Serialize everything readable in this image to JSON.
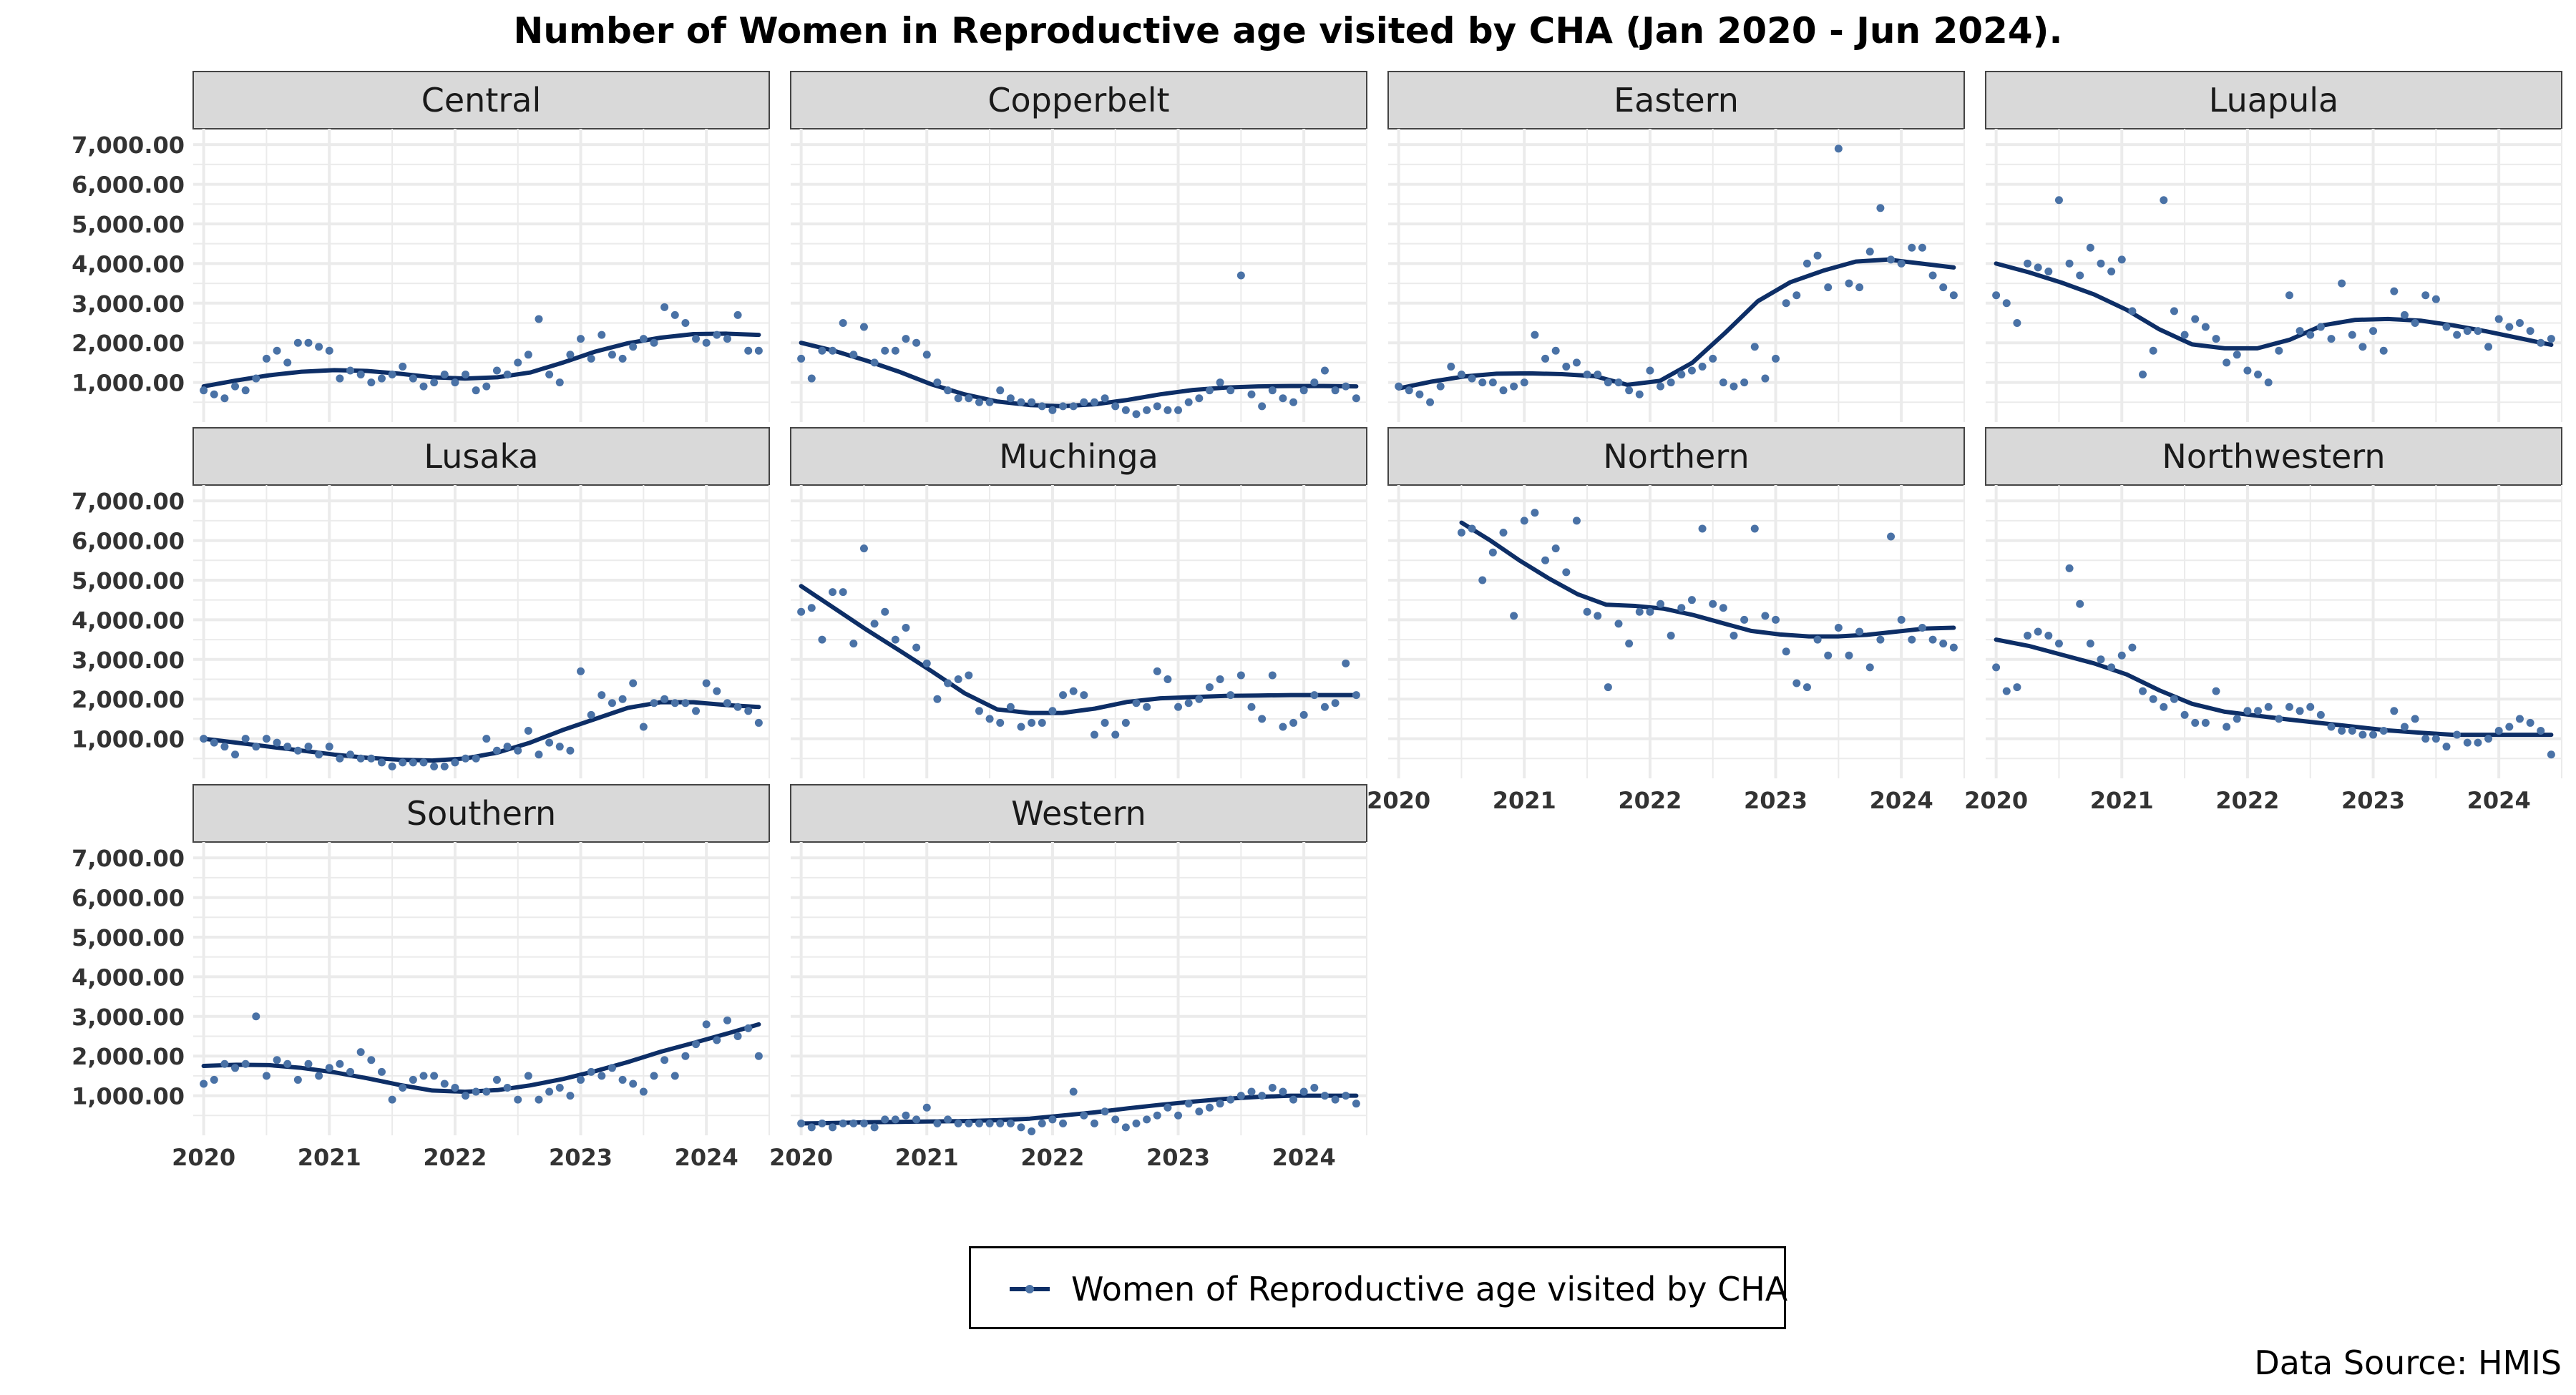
{
  "title": "Number of Women in Reproductive age visited by CHA (Jan 2020 - Jun 2024).",
  "legend": {
    "label": "Women of Reproductive age visited by CHA"
  },
  "source": "Data Source: HMIS",
  "colors": {
    "line": "#0d2e66",
    "point": "#4a72a6",
    "strip_fill": "#d9d9d9",
    "grid": "#ebebeb"
  },
  "chart_data": {
    "type": "scatter",
    "x_ticks": [
      "2020",
      "2021",
      "2022",
      "2023",
      "2024"
    ],
    "y_ticks": [
      "1,000.00",
      "2,000.00",
      "3,000.00",
      "4,000.00",
      "5,000.00",
      "6,000.00",
      "7,000.00"
    ],
    "ylim": [
      0,
      7400
    ],
    "xlim": [
      "2019-12",
      "2024-07"
    ],
    "grid": true,
    "legend_position": "bottom",
    "months": [
      "2020-01",
      "2020-02",
      "2020-03",
      "2020-04",
      "2020-05",
      "2020-06",
      "2020-07",
      "2020-08",
      "2020-09",
      "2020-10",
      "2020-11",
      "2020-12",
      "2021-01",
      "2021-02",
      "2021-03",
      "2021-04",
      "2021-05",
      "2021-06",
      "2021-07",
      "2021-08",
      "2021-09",
      "2021-10",
      "2021-11",
      "2021-12",
      "2022-01",
      "2022-02",
      "2022-03",
      "2022-04",
      "2022-05",
      "2022-06",
      "2022-07",
      "2022-08",
      "2022-09",
      "2022-10",
      "2022-11",
      "2022-12",
      "2023-01",
      "2023-02",
      "2023-03",
      "2023-04",
      "2023-05",
      "2023-06",
      "2023-07",
      "2023-08",
      "2023-09",
      "2023-10",
      "2023-11",
      "2023-12",
      "2024-01",
      "2024-02",
      "2024-03",
      "2024-04",
      "2024-05",
      "2024-06"
    ],
    "panels": [
      {
        "name": "Central",
        "points": [
          800,
          700,
          600,
          900,
          800,
          1100,
          1600,
          1800,
          1500,
          2000,
          2000,
          1900,
          1800,
          1100,
          1300,
          1200,
          1000,
          1100,
          1200,
          1400,
          1100,
          900,
          1000,
          1200,
          1000,
          1200,
          800,
          900,
          1300,
          1200,
          1500,
          1700,
          2600,
          1200,
          1000,
          1700,
          2100,
          1600,
          2200,
          1700,
          1600,
          1900,
          2100,
          2000,
          2900,
          2700,
          2500,
          2100,
          2000,
          2200,
          2100,
          2700,
          1800,
          1800
        ],
        "trend": [
          900,
          1050,
          1180,
          1270,
          1310,
          1290,
          1220,
          1130,
          1100,
          1130,
          1250,
          1500,
          1780,
          1990,
          2130,
          2220,
          2230,
          2200
        ]
      },
      {
        "name": "Copperbelt",
        "points": [
          1600,
          1100,
          1800,
          1800,
          2500,
          1700,
          2400,
          1500,
          1800,
          1800,
          2100,
          2000,
          1700,
          1000,
          800,
          600,
          600,
          500,
          500,
          800,
          600,
          500,
          500,
          400,
          300,
          400,
          400,
          500,
          500,
          600,
          400,
          300,
          200,
          300,
          400,
          300,
          300,
          500,
          600,
          800,
          1000,
          800,
          3700,
          700,
          400,
          800,
          600,
          500,
          800,
          1000,
          1300,
          800,
          900,
          600
        ],
        "trend": [
          2000,
          1800,
          1550,
          1270,
          950,
          700,
          520,
          430,
          400,
          450,
          560,
          700,
          810,
          870,
          900,
          910,
          910,
          900
        ]
      },
      {
        "name": "Eastern",
        "points": [
          900,
          800,
          700,
          500,
          900,
          1400,
          1200,
          1100,
          1000,
          1000,
          800,
          900,
          1000,
          2200,
          1600,
          1800,
          1400,
          1500,
          1200,
          1200,
          1000,
          1000,
          800,
          700,
          1300,
          900,
          1000,
          1200,
          1300,
          1400,
          1600,
          1000,
          900,
          1000,
          1900,
          1100,
          1600,
          3000,
          3200,
          4000,
          4200,
          3400,
          6900,
          3500,
          3400,
          4300,
          5400,
          4100,
          4000,
          4400,
          4400,
          3700,
          3400,
          3200
        ],
        "trend": [
          850,
          1020,
          1150,
          1220,
          1230,
          1210,
          1160,
          940,
          1040,
          1500,
          2250,
          3050,
          3530,
          3820,
          4050,
          4100,
          4000,
          3900
        ]
      },
      {
        "name": "Luapula",
        "points": [
          3200,
          3000,
          2500,
          4000,
          3900,
          3800,
          5600,
          4000,
          3700,
          4400,
          4000,
          3800,
          4100,
          2800,
          1200,
          1800,
          5600,
          2800,
          2200,
          2600,
          2400,
          2100,
          1500,
          1700,
          1300,
          1200,
          1000,
          1800,
          3200,
          2300,
          2200,
          2400,
          2100,
          3500,
          2200,
          1900,
          2300,
          1800,
          3300,
          2700,
          2500,
          3200,
          3100,
          2400,
          2200,
          2300,
          2300,
          1900,
          2600,
          2400,
          2500,
          2300,
          2000,
          2100
        ],
        "trend": [
          4000,
          3780,
          3520,
          3220,
          2830,
          2340,
          1960,
          1860,
          1860,
          2080,
          2440,
          2580,
          2600,
          2560,
          2440,
          2290,
          2120,
          1950
        ]
      },
      {
        "name": "Lusaka",
        "points": [
          1000,
          900,
          800,
          600,
          1000,
          800,
          1000,
          900,
          800,
          700,
          800,
          600,
          800,
          500,
          600,
          500,
          500,
          400,
          300,
          400,
          400,
          400,
          300,
          300,
          400,
          500,
          500,
          1000,
          700,
          800,
          700,
          1200,
          600,
          900,
          800,
          700,
          2700,
          1600,
          2100,
          1900,
          2000,
          2400,
          1300,
          1900,
          2000,
          1900,
          1900,
          1700,
          2400,
          2200,
          1900,
          1800,
          1700,
          1400
        ],
        "trend": [
          1000,
          900,
          800,
          700,
          600,
          520,
          470,
          450,
          500,
          650,
          900,
          1220,
          1500,
          1780,
          1920,
          1920,
          1850,
          1800
        ]
      },
      {
        "name": "Muchinga",
        "points": [
          4200,
          4300,
          3500,
          4700,
          4700,
          3400,
          5800,
          3900,
          4200,
          3500,
          3800,
          3300,
          2900,
          2000,
          2400,
          2500,
          2600,
          1700,
          1500,
          1400,
          1800,
          1300,
          1400,
          1400,
          1700,
          2100,
          2200,
          2100,
          1100,
          1400,
          1100,
          1400,
          1900,
          1800,
          2700,
          2500,
          1800,
          1900,
          2000,
          2300,
          2500,
          2100,
          2600,
          1800,
          1500,
          2600,
          1300,
          1400,
          1600,
          2100,
          1800,
          1900,
          2900,
          2100
        ],
        "trend": [
          4850,
          4300,
          3750,
          3230,
          2700,
          2150,
          1740,
          1650,
          1650,
          1760,
          1930,
          2020,
          2050,
          2080,
          2090,
          2100,
          2100,
          2100
        ]
      },
      {
        "name": "Northern",
        "points": [
          null,
          null,
          null,
          null,
          null,
          null,
          6200,
          6300,
          5000,
          5700,
          6200,
          4100,
          6500,
          6700,
          5500,
          5800,
          5200,
          6500,
          4200,
          4100,
          2300,
          3900,
          3400,
          4200,
          4200,
          4400,
          3600,
          4300,
          4500,
          6300,
          4400,
          4300,
          3600,
          4000,
          6300,
          4100,
          4000,
          3200,
          2400,
          2300,
          3500,
          3100,
          3800,
          3100,
          3700,
          2800,
          3500,
          6100,
          4000,
          3500,
          3800,
          3500,
          3400,
          3300
        ],
        "trend": [
          6450,
          6000,
          5500,
          5050,
          4650,
          4380,
          4350,
          4280,
          4120,
          3920,
          3720,
          3630,
          3580,
          3580,
          3620,
          3700,
          3780,
          3800
        ]
      },
      {
        "name": "Northwestern",
        "points": [
          2800,
          2200,
          2300,
          3600,
          3700,
          3600,
          3400,
          5300,
          4400,
          3400,
          3000,
          2800,
          3100,
          3300,
          2200,
          2000,
          1800,
          2000,
          1600,
          1400,
          1400,
          2200,
          1300,
          1500,
          1700,
          1700,
          1800,
          1500,
          1800,
          1700,
          1800,
          1600,
          1300,
          1200,
          1200,
          1100,
          1100,
          1200,
          1700,
          1300,
          1500,
          1000,
          1000,
          800,
          1100,
          900,
          900,
          1000,
          1200,
          1300,
          1500,
          1400,
          1200,
          600
        ],
        "trend": [
          3500,
          3340,
          3120,
          2900,
          2620,
          2220,
          1880,
          1680,
          1580,
          1480,
          1390,
          1300,
          1210,
          1150,
          1100,
          1100,
          1100,
          1100
        ]
      },
      {
        "name": "Southern",
        "points": [
          1300,
          1400,
          1800,
          1700,
          1800,
          3000,
          1500,
          1900,
          1800,
          1400,
          1800,
          1500,
          1700,
          1800,
          1600,
          2100,
          1900,
          1600,
          900,
          1200,
          1400,
          1500,
          1500,
          1300,
          1200,
          1000,
          1100,
          1100,
          1400,
          1200,
          900,
          1500,
          900,
          1100,
          1200,
          1000,
          1400,
          1600,
          1500,
          1700,
          1400,
          1300,
          1100,
          1500,
          1900,
          1500,
          2000,
          2300,
          2800,
          2400,
          2900,
          2500,
          2700,
          2000
        ],
        "trend": [
          1750,
          1780,
          1770,
          1700,
          1590,
          1440,
          1270,
          1130,
          1100,
          1140,
          1260,
          1420,
          1620,
          1850,
          2110,
          2330,
          2560,
          2800
        ]
      },
      {
        "name": "Western",
        "points": [
          300,
          200,
          300,
          200,
          300,
          300,
          300,
          200,
          400,
          400,
          500,
          400,
          700,
          300,
          400,
          300,
          300,
          300,
          300,
          300,
          300,
          200,
          100,
          300,
          400,
          300,
          1100,
          500,
          300,
          600,
          400,
          200,
          300,
          400,
          500,
          700,
          500,
          800,
          600,
          700,
          800,
          900,
          1000,
          1100,
          1000,
          1200,
          1100,
          900,
          1100,
          1200,
          1000,
          900,
          1000,
          800
        ],
        "trend": [
          300,
          310,
          330,
          340,
          350,
          360,
          380,
          420,
          500,
          580,
          680,
          770,
          850,
          920,
          970,
          1000,
          1000,
          1000
        ]
      }
    ]
  }
}
